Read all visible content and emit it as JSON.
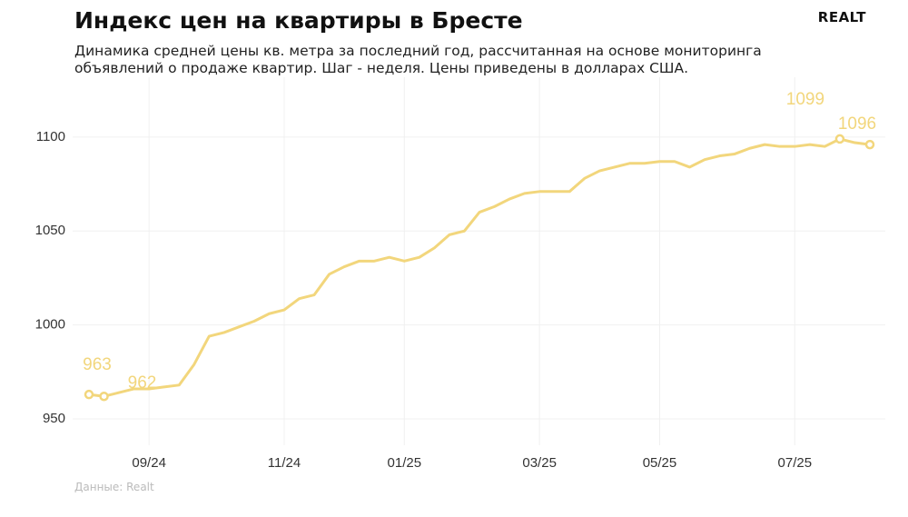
{
  "chart_data": {
    "type": "line",
    "title": "Индекс цен на квартиры в Бресте",
    "subtitle": "Динамика средней цены кв. метра за последний год, рассчитанная на основе мониторинга объявлений о продаже квартир. Шаг - неделя. Цены приведены в долларах США.",
    "source": "Данные: Realt",
    "logo": "REALT",
    "categories": [
      null,
      null,
      null,
      null,
      "09/24",
      null,
      null,
      null,
      null,
      null,
      null,
      null,
      null,
      "11/24",
      null,
      null,
      null,
      null,
      null,
      null,
      null,
      "01/25",
      null,
      null,
      null,
      null,
      null,
      null,
      null,
      null,
      "03/25",
      null,
      null,
      null,
      null,
      null,
      null,
      null,
      "05/25",
      null,
      null,
      null,
      null,
      null,
      null,
      null,
      null,
      "07/25",
      null,
      null,
      null,
      null,
      null
    ],
    "values": [
      963,
      962,
      964,
      966,
      966,
      967,
      968,
      979,
      994,
      996,
      999,
      1002,
      1006,
      1008,
      1014,
      1016,
      1027,
      1031,
      1034,
      1034,
      1036,
      1034,
      1036,
      1041,
      1048,
      1050,
      1060,
      1063,
      1067,
      1070,
      1071,
      1071,
      1071,
      1078,
      1082,
      1084,
      1086,
      1086,
      1087,
      1087,
      1084,
      1088,
      1090,
      1091,
      1094,
      1096,
      1095,
      1095,
      1096,
      1095,
      1099,
      1097,
      1096
    ],
    "labeled_points": [
      0,
      1,
      50,
      52
    ],
    "color": "#f2d67c",
    "ylim": [
      936,
      1127
    ],
    "yticks": [
      950,
      1000,
      1050,
      1100
    ],
    "grid": true
  }
}
